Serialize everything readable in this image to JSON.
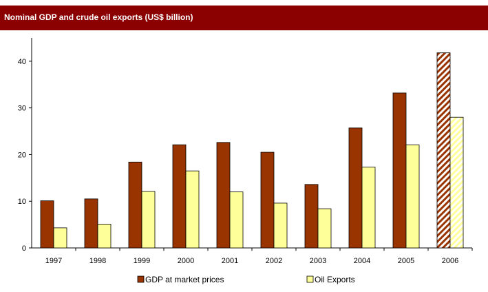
{
  "header": {
    "title": "Nominal GDP and crude oil exports (US$ billion)",
    "bar_color": "#8b0000"
  },
  "chart_data": {
    "type": "bar",
    "title": "Nominal GDP and crude oil exports (US$ billion)",
    "xlabel": "",
    "ylabel": "",
    "categories": [
      "1997",
      "1998",
      "1999",
      "2000",
      "2001",
      "2002",
      "2003",
      "2004",
      "2005",
      "2006"
    ],
    "series": [
      {
        "name": "GDP at market prices",
        "color": "#993300",
        "values": [
          10.1,
          10.5,
          18.4,
          22.1,
          22.6,
          20.5,
          13.6,
          25.7,
          33.2,
          41.8
        ]
      },
      {
        "name": "Oil Exports",
        "color": "#ffff99",
        "values": [
          4.3,
          5.1,
          12.1,
          16.5,
          12.0,
          9.6,
          8.4,
          17.3,
          22.1,
          28.0
        ]
      }
    ],
    "hatched_categories": [
      "2006"
    ],
    "ylim": [
      0,
      45
    ],
    "yticks": [
      0,
      10,
      20,
      30,
      40
    ],
    "grid": false,
    "legend_position": "bottom"
  }
}
